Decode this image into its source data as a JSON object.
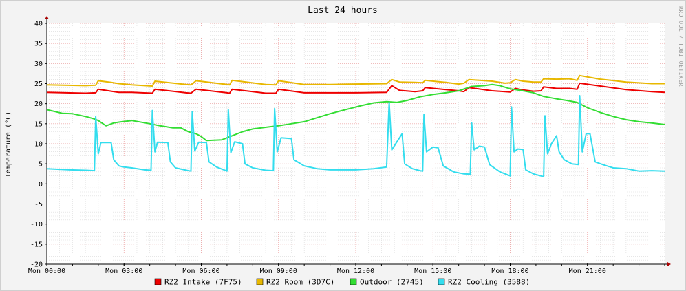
{
  "chart_data": {
    "type": "line",
    "title": "Last 24 hours",
    "ylabel": "Temperature (°C)",
    "watermark": "RRDTOOL / TOBI OETIKER",
    "xlim": [
      0,
      24
    ],
    "ylim": [
      -20,
      40
    ],
    "y_ticks": [
      40,
      35,
      30,
      25,
      20,
      15,
      10,
      5,
      0,
      -5,
      -10,
      -15,
      -20
    ],
    "x_ticks": [
      {
        "x": 0,
        "label": "Mon 00:00"
      },
      {
        "x": 3,
        "label": "Mon 03:00"
      },
      {
        "x": 6,
        "label": "Mon 06:00"
      },
      {
        "x": 9,
        "label": "Mon 09:00"
      },
      {
        "x": 12,
        "label": "Mon 12:00"
      },
      {
        "x": 15,
        "label": "Mon 15:00"
      },
      {
        "x": 18,
        "label": "Mon 18:00"
      },
      {
        "x": 21,
        "label": "Mon 21:00"
      }
    ],
    "grid": true,
    "legend_position": "bottom",
    "series": [
      {
        "name": "RZ2 Intake (7F75)",
        "color": "#ee0000",
        "points": [
          [
            0,
            22.8
          ],
          [
            1.5,
            22.6
          ],
          [
            1.9,
            22.7
          ],
          [
            2.0,
            23.6
          ],
          [
            2.5,
            23.1
          ],
          [
            2.8,
            22.8
          ],
          [
            3.3,
            22.8
          ],
          [
            4.1,
            22.6
          ],
          [
            4.2,
            23.6
          ],
          [
            5.4,
            22.7
          ],
          [
            5.6,
            22.6
          ],
          [
            5.8,
            23.6
          ],
          [
            7.0,
            22.7
          ],
          [
            7.1,
            22.6
          ],
          [
            7.2,
            23.6
          ],
          [
            8.5,
            22.6
          ],
          [
            8.9,
            22.6
          ],
          [
            9.0,
            23.6
          ],
          [
            10.0,
            22.7
          ],
          [
            11.0,
            22.7
          ],
          [
            12.0,
            22.7
          ],
          [
            13.2,
            22.8
          ],
          [
            13.4,
            24.5
          ],
          [
            13.7,
            23.3
          ],
          [
            14.3,
            23.0
          ],
          [
            14.6,
            23.2
          ],
          [
            14.7,
            24.0
          ],
          [
            15.5,
            23.5
          ],
          [
            16.0,
            23.2
          ],
          [
            16.2,
            23.0
          ],
          [
            16.4,
            24.0
          ],
          [
            17.3,
            23.2
          ],
          [
            17.8,
            23.0
          ],
          [
            18.0,
            22.9
          ],
          [
            18.2,
            23.8
          ],
          [
            18.5,
            23.4
          ],
          [
            18.9,
            23.1
          ],
          [
            19.2,
            23.2
          ],
          [
            19.3,
            24.2
          ],
          [
            19.8,
            23.8
          ],
          [
            20.3,
            23.8
          ],
          [
            20.6,
            23.6
          ],
          [
            20.7,
            25.1
          ],
          [
            21.5,
            24.4
          ],
          [
            22.5,
            23.5
          ],
          [
            23.5,
            23.0
          ],
          [
            24,
            22.8
          ]
        ]
      },
      {
        "name": "RZ2 Room (3D7C)",
        "color": "#e8b800",
        "points": [
          [
            0,
            24.7
          ],
          [
            1.5,
            24.5
          ],
          [
            1.9,
            24.6
          ],
          [
            2.0,
            25.7
          ],
          [
            2.5,
            25.3
          ],
          [
            2.8,
            25.0
          ],
          [
            3.3,
            24.7
          ],
          [
            4.1,
            24.4
          ],
          [
            4.2,
            25.6
          ],
          [
            5.4,
            24.8
          ],
          [
            5.6,
            24.7
          ],
          [
            5.8,
            25.7
          ],
          [
            7.0,
            24.8
          ],
          [
            7.1,
            24.7
          ],
          [
            7.2,
            25.8
          ],
          [
            8.5,
            24.8
          ],
          [
            8.9,
            24.7
          ],
          [
            9.0,
            25.7
          ],
          [
            10.0,
            24.8
          ],
          [
            11.0,
            24.8
          ],
          [
            12.0,
            24.9
          ],
          [
            13.2,
            25.0
          ],
          [
            13.4,
            26.0
          ],
          [
            13.7,
            25.4
          ],
          [
            14.3,
            25.3
          ],
          [
            14.6,
            25.2
          ],
          [
            14.7,
            25.8
          ],
          [
            15.5,
            25.3
          ],
          [
            16.0,
            24.9
          ],
          [
            16.2,
            25.1
          ],
          [
            16.4,
            26.0
          ],
          [
            17.3,
            25.6
          ],
          [
            17.8,
            25.1
          ],
          [
            18.0,
            25.2
          ],
          [
            18.2,
            26.0
          ],
          [
            18.5,
            25.6
          ],
          [
            18.9,
            25.4
          ],
          [
            19.2,
            25.4
          ],
          [
            19.3,
            26.2
          ],
          [
            19.8,
            26.1
          ],
          [
            20.3,
            26.2
          ],
          [
            20.6,
            25.8
          ],
          [
            20.7,
            27.0
          ],
          [
            21.5,
            26.1
          ],
          [
            22.5,
            25.4
          ],
          [
            23.5,
            25.0
          ],
          [
            24,
            25.0
          ]
        ]
      },
      {
        "name": "Outdoor (2745)",
        "color": "#33dd33",
        "points": [
          [
            0,
            18.5
          ],
          [
            0.6,
            17.6
          ],
          [
            1.0,
            17.5
          ],
          [
            1.5,
            16.8
          ],
          [
            1.8,
            16.3
          ],
          [
            2.0,
            15.8
          ],
          [
            2.3,
            14.5
          ],
          [
            2.6,
            15.2
          ],
          [
            2.8,
            15.4
          ],
          [
            3.3,
            15.8
          ],
          [
            4.0,
            15.0
          ],
          [
            4.4,
            14.5
          ],
          [
            4.9,
            14.0
          ],
          [
            5.2,
            14.0
          ],
          [
            5.5,
            13.0
          ],
          [
            5.8,
            12.5
          ],
          [
            6.0,
            11.8
          ],
          [
            6.2,
            10.8
          ],
          [
            6.8,
            11.0
          ],
          [
            7.2,
            12.0
          ],
          [
            7.6,
            13.0
          ],
          [
            8.0,
            13.7
          ],
          [
            8.6,
            14.2
          ],
          [
            9.0,
            14.5
          ],
          [
            9.5,
            15.0
          ],
          [
            10.0,
            15.5
          ],
          [
            10.5,
            16.5
          ],
          [
            11.0,
            17.5
          ],
          [
            11.6,
            18.5
          ],
          [
            12.2,
            19.5
          ],
          [
            12.7,
            20.2
          ],
          [
            13.2,
            20.5
          ],
          [
            13.6,
            20.3
          ],
          [
            14.0,
            20.8
          ],
          [
            14.5,
            21.7
          ],
          [
            15.0,
            22.3
          ],
          [
            15.5,
            22.7
          ],
          [
            16.0,
            23.2
          ],
          [
            16.5,
            24.3
          ],
          [
            17.0,
            24.5
          ],
          [
            17.3,
            24.8
          ],
          [
            17.6,
            24.5
          ],
          [
            18.0,
            23.7
          ],
          [
            18.5,
            23.2
          ],
          [
            18.9,
            22.7
          ],
          [
            19.3,
            21.8
          ],
          [
            19.8,
            21.2
          ],
          [
            20.2,
            20.8
          ],
          [
            20.6,
            20.3
          ],
          [
            21.0,
            19.0
          ],
          [
            21.5,
            17.8
          ],
          [
            22.0,
            16.8
          ],
          [
            22.5,
            16.0
          ],
          [
            23.0,
            15.5
          ],
          [
            23.5,
            15.2
          ],
          [
            24,
            14.8
          ]
        ]
      },
      {
        "name": "RZ2 Cooling (3588)",
        "color": "#33ddee",
        "points": [
          [
            0,
            3.8
          ],
          [
            0.9,
            3.5
          ],
          [
            1.5,
            3.4
          ],
          [
            1.85,
            3.3
          ],
          [
            1.9,
            16.8
          ],
          [
            2.0,
            7.5
          ],
          [
            2.1,
            10.3
          ],
          [
            2.5,
            10.3
          ],
          [
            2.6,
            6.0
          ],
          [
            2.8,
            4.5
          ],
          [
            3.0,
            4.2
          ],
          [
            3.3,
            4.0
          ],
          [
            3.8,
            3.5
          ],
          [
            4.05,
            3.4
          ],
          [
            4.1,
            18.3
          ],
          [
            4.2,
            8.0
          ],
          [
            4.3,
            10.4
          ],
          [
            4.7,
            10.3
          ],
          [
            4.8,
            5.5
          ],
          [
            5.0,
            4.0
          ],
          [
            5.5,
            3.3
          ],
          [
            5.6,
            3.2
          ],
          [
            5.65,
            18.0
          ],
          [
            5.75,
            8.2
          ],
          [
            5.9,
            10.4
          ],
          [
            6.2,
            10.3
          ],
          [
            6.3,
            5.5
          ],
          [
            6.6,
            4.2
          ],
          [
            7.0,
            3.2
          ],
          [
            7.05,
            18.5
          ],
          [
            7.15,
            7.8
          ],
          [
            7.3,
            10.5
          ],
          [
            7.6,
            10.0
          ],
          [
            7.7,
            5.0
          ],
          [
            8.0,
            4.0
          ],
          [
            8.5,
            3.4
          ],
          [
            8.8,
            3.3
          ],
          [
            8.85,
            18.8
          ],
          [
            8.95,
            8.0
          ],
          [
            9.1,
            11.5
          ],
          [
            9.5,
            11.3
          ],
          [
            9.6,
            6.0
          ],
          [
            10.0,
            4.5
          ],
          [
            10.5,
            3.8
          ],
          [
            11.0,
            3.5
          ],
          [
            12.0,
            3.5
          ],
          [
            12.7,
            3.8
          ],
          [
            13.2,
            4.2
          ],
          [
            13.3,
            20.3
          ],
          [
            13.4,
            8.5
          ],
          [
            13.6,
            10.5
          ],
          [
            13.8,
            12.5
          ],
          [
            13.9,
            5.0
          ],
          [
            14.2,
            3.8
          ],
          [
            14.5,
            3.3
          ],
          [
            14.6,
            3.2
          ],
          [
            14.65,
            17.3
          ],
          [
            14.75,
            8.0
          ],
          [
            15.0,
            9.2
          ],
          [
            15.2,
            9.0
          ],
          [
            15.4,
            4.5
          ],
          [
            15.8,
            3.0
          ],
          [
            16.2,
            2.5
          ],
          [
            16.45,
            2.4
          ],
          [
            16.5,
            15.3
          ],
          [
            16.6,
            8.5
          ],
          [
            16.8,
            9.4
          ],
          [
            17.0,
            9.2
          ],
          [
            17.2,
            4.8
          ],
          [
            17.6,
            3.0
          ],
          [
            18.0,
            2.0
          ],
          [
            18.05,
            19.2
          ],
          [
            18.15,
            8.0
          ],
          [
            18.3,
            8.7
          ],
          [
            18.5,
            8.6
          ],
          [
            18.6,
            3.5
          ],
          [
            18.9,
            2.5
          ],
          [
            19.3,
            1.8
          ],
          [
            19.35,
            17.0
          ],
          [
            19.45,
            7.5
          ],
          [
            19.6,
            10.0
          ],
          [
            19.8,
            12.0
          ],
          [
            19.9,
            8.0
          ],
          [
            20.1,
            6.0
          ],
          [
            20.4,
            5.0
          ],
          [
            20.65,
            4.8
          ],
          [
            20.7,
            22.0
          ],
          [
            20.8,
            8.0
          ],
          [
            20.95,
            12.5
          ],
          [
            21.1,
            12.5
          ],
          [
            21.3,
            5.5
          ],
          [
            21.6,
            4.8
          ],
          [
            22.0,
            4.0
          ],
          [
            22.5,
            3.8
          ],
          [
            23.0,
            3.2
          ],
          [
            23.5,
            3.3
          ],
          [
            24,
            3.2
          ]
        ]
      }
    ]
  }
}
